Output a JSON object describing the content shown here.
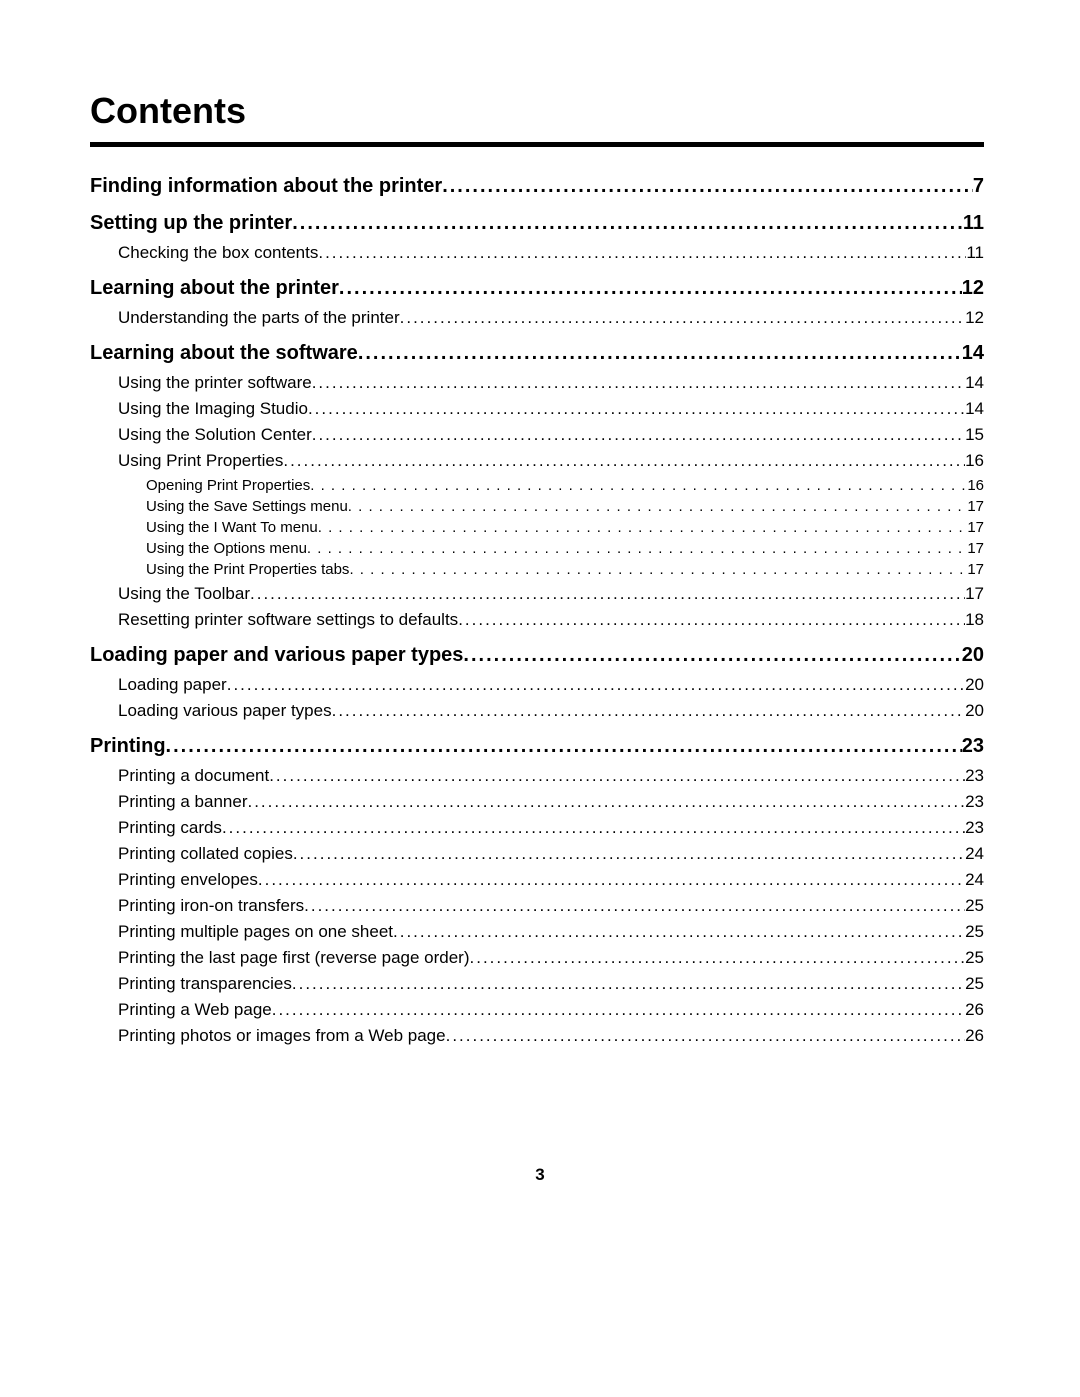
{
  "title": "Contents",
  "page_number": "3",
  "sections": [
    {
      "level": 1,
      "label": "Finding information about the printer",
      "page": "7"
    },
    {
      "level": 1,
      "label": "Setting up the printer",
      "page": "11"
    },
    {
      "level": 2,
      "label": "Checking the box contents",
      "page": "11"
    },
    {
      "level": 1,
      "label": "Learning about the printer",
      "page": "12"
    },
    {
      "level": 2,
      "label": "Understanding the parts of the printer",
      "page": "12"
    },
    {
      "level": 1,
      "label": "Learning about the software",
      "page": "14"
    },
    {
      "level": 2,
      "label": "Using the printer software",
      "page": "14"
    },
    {
      "level": 2,
      "label": "Using the Imaging Studio",
      "page": "14"
    },
    {
      "level": 2,
      "label": "Using the Solution Center",
      "page": "15"
    },
    {
      "level": 2,
      "label": "Using Print Properties",
      "page": "16"
    },
    {
      "level": 3,
      "label": "Opening Print Properties ",
      "page": " 16"
    },
    {
      "level": 3,
      "label": "Using the Save Settings menu ",
      "page": " 17"
    },
    {
      "level": 3,
      "label": "Using the I Want To menu ",
      "page": " 17"
    },
    {
      "level": 3,
      "label": "Using the Options menu ",
      "page": " 17"
    },
    {
      "level": 3,
      "label": "Using the Print Properties tabs ",
      "page": " 17"
    },
    {
      "level": 2,
      "label": "Using the Toolbar",
      "page": "17"
    },
    {
      "level": 2,
      "label": "Resetting printer software settings to defaults",
      "page": "18"
    },
    {
      "level": 1,
      "label": "Loading paper and various paper types",
      "page": "20"
    },
    {
      "level": 2,
      "label": "Loading paper",
      "page": "20"
    },
    {
      "level": 2,
      "label": "Loading various paper types",
      "page": "20"
    },
    {
      "level": 1,
      "label": "Printing",
      "page": "23"
    },
    {
      "level": 2,
      "label": "Printing a document",
      "page": "23"
    },
    {
      "level": 2,
      "label": "Printing a banner",
      "page": "23"
    },
    {
      "level": 2,
      "label": "Printing cards",
      "page": "23"
    },
    {
      "level": 2,
      "label": "Printing collated copies",
      "page": "24"
    },
    {
      "level": 2,
      "label": "Printing envelopes",
      "page": "24"
    },
    {
      "level": 2,
      "label": "Printing iron-on transfers",
      "page": "25"
    },
    {
      "level": 2,
      "label": "Printing multiple pages on one sheet",
      "page": "25"
    },
    {
      "level": 2,
      "label": "Printing the last page first (reverse page order)",
      "page": "25"
    },
    {
      "level": 2,
      "label": "Printing transparencies",
      "page": "25"
    },
    {
      "level": 2,
      "label": "Printing a Web page",
      "page": "26"
    },
    {
      "level": 2,
      "label": "Printing photos or images from a Web page",
      "page": "26"
    }
  ]
}
